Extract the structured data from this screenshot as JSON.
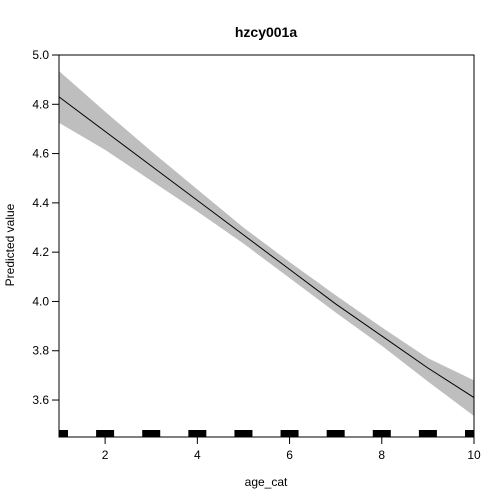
{
  "chart_data": {
    "type": "line",
    "title": "hzcy001a",
    "xlabel": "age_cat",
    "ylabel": "Predicted value",
    "xlim": [
      1,
      10
    ],
    "ylim": [
      3.45,
      5.0
    ],
    "xticks": [
      2,
      4,
      6,
      8,
      10
    ],
    "yticks": [
      3.6,
      3.8,
      4.0,
      4.2,
      4.4,
      4.6,
      4.8,
      5.0
    ],
    "ytick_labels": [
      "3.6",
      "3.8",
      "4.0",
      "4.2",
      "4.4",
      "4.6",
      "4.8",
      "5.0"
    ],
    "grid": false,
    "x": [
      1,
      2,
      3,
      4,
      5,
      6,
      7,
      8,
      9,
      10
    ],
    "series": [
      {
        "values": [
          4.83,
          4.69,
          4.55,
          4.41,
          4.27,
          4.13,
          3.99,
          3.86,
          3.73,
          3.61
        ],
        "lower": [
          4.725,
          4.615,
          4.49,
          4.365,
          4.235,
          4.095,
          3.955,
          3.82,
          3.675,
          3.535
        ],
        "upper": [
          4.935,
          4.77,
          4.61,
          4.455,
          4.3,
          4.16,
          4.025,
          3.895,
          3.77,
          3.68
        ],
        "color": "#000000",
        "band_color": "#bebebe"
      }
    ],
    "rug": [
      1,
      2,
      3,
      4,
      5,
      6,
      7,
      8,
      9,
      10
    ]
  }
}
